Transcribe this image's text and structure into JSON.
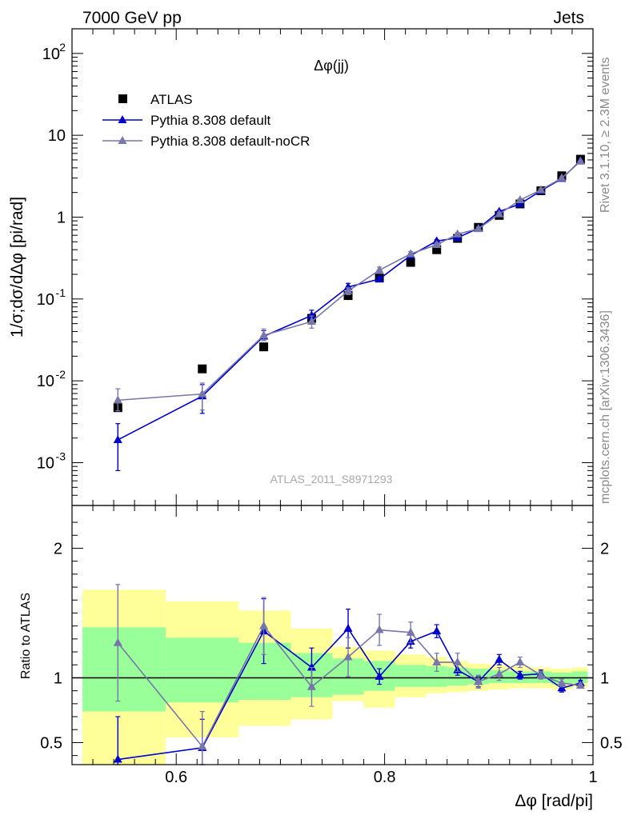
{
  "header": {
    "left": "7000 GeV pp",
    "right": "Jets"
  },
  "side_labels": {
    "rivet": "Rivet 3.1.10, ≥ 2.3M events",
    "mcplots": "mcplots.cern.ch [arXiv:1306.3436]"
  },
  "watermark": "ATLAS_2011_S8971293",
  "chart_data": [
    {
      "type": "scatter",
      "panel": "main",
      "title": "Δφ(jj)",
      "ylabel": "1/σ;dσ/dΔφ [pi/rad]",
      "xlabel": "",
      "yscale": "log",
      "xlim": [
        0.5,
        1.0
      ],
      "ylim": [
        0.0003,
        200
      ],
      "x_ticks": [
        0.6,
        0.8,
        1
      ],
      "y_ticks": [
        {
          "v": 0.001,
          "m": "10",
          "e": "-3"
        },
        {
          "v": 0.01,
          "m": "10",
          "e": "-2"
        },
        {
          "v": 0.1,
          "m": "10",
          "e": "-1"
        },
        {
          "v": 1,
          "m": "1",
          "e": ""
        },
        {
          "v": 10,
          "m": "10",
          "e": ""
        },
        {
          "v": 100,
          "m": "10",
          "e": "2"
        }
      ],
      "legend_position": "top-left",
      "series": [
        {
          "name": "ATLAS",
          "kind": "data",
          "color": "#000000",
          "marker": "square",
          "x": [
            0.544,
            0.625,
            0.684,
            0.73,
            0.765,
            0.795,
            0.825,
            0.85,
            0.87,
            0.89,
            0.91,
            0.93,
            0.95,
            0.97,
            0.988
          ],
          "y": [
            0.0047,
            0.014,
            0.026,
            0.058,
            0.11,
            0.18,
            0.28,
            0.4,
            0.55,
            0.75,
            1.05,
            1.45,
            2.1,
            3.2,
            5.1
          ]
        },
        {
          "name": "Pythia 8.308 default",
          "kind": "mc",
          "color": "#0000cc",
          "marker": "triangle",
          "x": [
            0.544,
            0.625,
            0.684,
            0.73,
            0.765,
            0.795,
            0.825,
            0.85,
            0.87,
            0.89,
            0.91,
            0.93,
            0.95,
            0.97,
            0.988
          ],
          "y": [
            0.0019,
            0.0065,
            0.035,
            0.063,
            0.14,
            0.175,
            0.34,
            0.51,
            0.56,
            0.73,
            1.17,
            1.45,
            2.1,
            2.95,
            4.9
          ],
          "err_lo": [
            0.0011,
            0.0025,
            0.004,
            0.006,
            0.012,
            0.012,
            0.02,
            0.02,
            0.02,
            0.03,
            0.04,
            0.05,
            0.07,
            0.09,
            0.12
          ],
          "err_hi": [
            0.0011,
            0.0025,
            0.006,
            0.01,
            0.015,
            0.012,
            0.02,
            0.02,
            0.02,
            0.03,
            0.04,
            0.05,
            0.07,
            0.09,
            0.12
          ]
        },
        {
          "name": "Pythia 8.308 default-noCR",
          "kind": "mc",
          "color": "#7777aa",
          "marker": "triangle",
          "x": [
            0.544,
            0.625,
            0.684,
            0.73,
            0.765,
            0.795,
            0.825,
            0.85,
            0.87,
            0.89,
            0.91,
            0.93,
            0.95,
            0.97,
            0.988
          ],
          "y": [
            0.0058,
            0.0069,
            0.036,
            0.053,
            0.125,
            0.225,
            0.355,
            0.46,
            0.62,
            0.72,
            1.09,
            1.62,
            2.15,
            3.0,
            4.8
          ],
          "err_lo": [
            0.0015,
            0.0025,
            0.005,
            0.009,
            0.012,
            0.02,
            0.025,
            0.025,
            0.03,
            0.03,
            0.05,
            0.06,
            0.08,
            0.1,
            0.12
          ],
          "err_hi": [
            0.0022,
            0.0025,
            0.007,
            0.009,
            0.012,
            0.02,
            0.025,
            0.025,
            0.03,
            0.03,
            0.05,
            0.06,
            0.08,
            0.1,
            0.12
          ]
        }
      ]
    },
    {
      "type": "scatter",
      "panel": "ratio",
      "ylabel": "Ratio to ATLAS",
      "xlabel": "Δφ [rad/pi]",
      "xlim": [
        0.5,
        1.0
      ],
      "ylim": [
        0.33,
        2.33
      ],
      "x_ticks": [
        0.6,
        0.8,
        1
      ],
      "y_ticks": [
        0.5,
        1,
        2
      ],
      "reference_line": 1,
      "bands": {
        "bin_edges": [
          0.51,
          0.59,
          0.66,
          0.71,
          0.75,
          0.78,
          0.81,
          0.84,
          0.86,
          0.88,
          0.9,
          0.92,
          0.94,
          0.96,
          0.98,
          0.995
        ],
        "inner": {
          "color": "#99ff99",
          "lo": [
            0.74,
            0.81,
            0.83,
            0.85,
            0.87,
            0.9,
            0.93,
            0.93,
            0.94,
            0.95,
            0.96,
            0.96,
            0.96,
            0.95,
            0.96
          ],
          "hi": [
            1.39,
            1.31,
            1.27,
            1.19,
            1.15,
            1.13,
            1.1,
            1.09,
            1.08,
            1.07,
            1.06,
            1.05,
            1.05,
            1.04,
            1.05
          ]
        },
        "outer": {
          "color": "#ffff99",
          "lo": [
            0.33,
            0.54,
            0.63,
            0.68,
            0.82,
            0.77,
            0.85,
            0.88,
            0.89,
            0.9,
            0.91,
            0.92,
            0.92,
            0.91,
            0.93
          ],
          "hi": [
            1.68,
            1.59,
            1.52,
            1.38,
            1.24,
            1.21,
            1.18,
            1.16,
            1.13,
            1.11,
            1.1,
            1.09,
            1.08,
            1.07,
            1.08
          ]
        }
      },
      "series": [
        {
          "name": "Pythia 8.308 default",
          "color": "#0000cc",
          "marker": "triangle",
          "x": [
            0.544,
            0.625,
            0.684,
            0.73,
            0.765,
            0.795,
            0.825,
            0.85,
            0.87,
            0.89,
            0.91,
            0.93,
            0.95,
            0.97,
            0.988
          ],
          "y": [
            0.37,
            0.46,
            1.36,
            1.08,
            1.38,
            1.01,
            1.28,
            1.36,
            1.06,
            0.97,
            1.14,
            1.02,
            1.03,
            0.92,
            0.96
          ],
          "err": [
            0.33,
            0.22,
            0.25,
            0.15,
            0.15,
            0.06,
            0.05,
            0.05,
            0.04,
            0.04,
            0.04,
            0.03,
            0.03,
            0.03,
            0.02
          ]
        },
        {
          "name": "Pythia 8.308 default-noCR",
          "color": "#7777aa",
          "marker": "triangle",
          "x": [
            0.544,
            0.625,
            0.684,
            0.73,
            0.765,
            0.795,
            0.825,
            0.85,
            0.87,
            0.89,
            0.91,
            0.93,
            0.95,
            0.97,
            0.988
          ],
          "y": [
            1.27,
            0.47,
            1.4,
            0.93,
            1.16,
            1.37,
            1.35,
            1.12,
            1.12,
            0.97,
            1.03,
            1.12,
            1.02,
            0.96,
            0.94
          ],
          "err": [
            0.45,
            0.27,
            0.22,
            0.15,
            0.15,
            0.12,
            0.08,
            0.07,
            0.07,
            0.05,
            0.05,
            0.04,
            0.03,
            0.03,
            0.02
          ]
        }
      ]
    }
  ]
}
